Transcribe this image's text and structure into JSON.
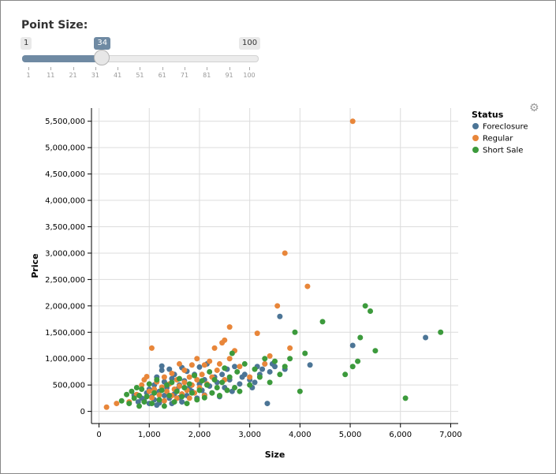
{
  "controls": {
    "point_size": {
      "label": "Point Size:",
      "min": 1,
      "max": 100,
      "value": 34,
      "min_label": "1",
      "max_label": "100",
      "value_label": "34",
      "ticks": [
        "1",
        "11",
        "21",
        "31",
        "41",
        "51",
        "61",
        "71",
        "81",
        "91",
        "100"
      ],
      "accent_color": "#6f8aa3"
    }
  },
  "gear_icon": "gear-icon",
  "chart_data": {
    "type": "scatter",
    "xlabel": "Size",
    "ylabel": "Price",
    "xlim": [
      -150,
      7150
    ],
    "ylim": [
      -230000,
      5750000
    ],
    "x_ticks": [
      0,
      1000,
      2000,
      3000,
      4000,
      5000,
      6000,
      7000
    ],
    "x_tick_labels": [
      "0",
      "1,000",
      "2,000",
      "3,000",
      "4,000",
      "5,000",
      "6,000",
      "7,000"
    ],
    "y_ticks": [
      0,
      500000,
      1000000,
      1500000,
      2000000,
      2500000,
      3000000,
      3500000,
      4000000,
      4500000,
      5000000,
      5500000
    ],
    "y_tick_labels": [
      "0",
      "500,000",
      "1,000,000",
      "1,500,000",
      "2,000,000",
      "2,500,000",
      "3,000,000",
      "3,500,000",
      "4,000,000",
      "4,500,000",
      "5,000,000",
      "5,500,000"
    ],
    "grid": true,
    "legend": {
      "title": "Status",
      "position": "top-right"
    },
    "series": [
      {
        "name": "Foreclosure",
        "color": "#4c7596",
        "points": [
          [
            700,
            300000
          ],
          [
            780,
            180000
          ],
          [
            850,
            250000
          ],
          [
            900,
            200000
          ],
          [
            950,
            350000
          ],
          [
            1000,
            150000
          ],
          [
            1000,
            420000
          ],
          [
            1050,
            280000
          ],
          [
            1100,
            220000
          ],
          [
            1100,
            500000
          ],
          [
            1150,
            120000
          ],
          [
            1150,
            650000
          ],
          [
            1200,
            380000
          ],
          [
            1200,
            160000
          ],
          [
            1250,
            780000
          ],
          [
            1250,
            860000
          ],
          [
            1300,
            300000
          ],
          [
            1300,
            560000
          ],
          [
            1350,
            450000
          ],
          [
            1400,
            250000
          ],
          [
            1400,
            800000
          ],
          [
            1450,
            150000
          ],
          [
            1450,
            620000
          ],
          [
            1500,
            330000
          ],
          [
            1500,
            700000
          ],
          [
            1550,
            420000
          ],
          [
            1600,
            500000
          ],
          [
            1600,
            260000
          ],
          [
            1650,
            830000
          ],
          [
            1650,
            180000
          ],
          [
            1700,
            580000
          ],
          [
            1750,
            300000
          ],
          [
            1750,
            760000
          ],
          [
            1800,
            450000
          ],
          [
            1850,
            380000
          ],
          [
            1900,
            700000
          ],
          [
            1950,
            250000
          ],
          [
            2000,
            520000
          ],
          [
            2000,
            840000
          ],
          [
            2050,
            400000
          ],
          [
            2100,
            600000
          ],
          [
            2100,
            310000
          ],
          [
            2150,
            900000
          ],
          [
            2200,
            480000
          ],
          [
            2250,
            350000
          ],
          [
            2300,
            650000
          ],
          [
            2350,
            550000
          ],
          [
            2400,
            280000
          ],
          [
            2450,
            700000
          ],
          [
            2500,
            450000
          ],
          [
            2550,
            800000
          ],
          [
            2600,
            600000
          ],
          [
            2650,
            380000
          ],
          [
            2700,
            850000
          ],
          [
            2800,
            520000
          ],
          [
            2850,
            650000
          ],
          [
            2900,
            700000
          ],
          [
            3000,
            600000
          ],
          [
            3050,
            450000
          ],
          [
            3100,
            550000
          ],
          [
            3150,
            850000
          ],
          [
            3200,
            700000
          ],
          [
            3250,
            800000
          ],
          [
            3300,
            900000
          ],
          [
            3350,
            150000
          ],
          [
            3400,
            750000
          ],
          [
            3450,
            900000
          ],
          [
            3500,
            850000
          ],
          [
            3600,
            1800000
          ],
          [
            3700,
            800000
          ],
          [
            4200,
            880000
          ],
          [
            5050,
            1250000
          ],
          [
            6500,
            1400000
          ]
        ]
      },
      {
        "name": "Regular",
        "color": "#e8863a",
        "points": [
          [
            150,
            80000
          ],
          [
            350,
            150000
          ],
          [
            600,
            180000
          ],
          [
            750,
            320000
          ],
          [
            850,
            500000
          ],
          [
            900,
            600000
          ],
          [
            950,
            660000
          ],
          [
            1000,
            380000
          ],
          [
            1050,
            260000
          ],
          [
            1050,
            1200000
          ],
          [
            1100,
            420000
          ],
          [
            1150,
            560000
          ],
          [
            1200,
            310000
          ],
          [
            1250,
            460000
          ],
          [
            1300,
            200000
          ],
          [
            1300,
            650000
          ],
          [
            1350,
            380000
          ],
          [
            1400,
            520000
          ],
          [
            1450,
            300000
          ],
          [
            1450,
            720000
          ],
          [
            1500,
            420000
          ],
          [
            1550,
            250000
          ],
          [
            1550,
            600000
          ],
          [
            1600,
            480000
          ],
          [
            1600,
            900000
          ],
          [
            1650,
            330000
          ],
          [
            1700,
            550000
          ],
          [
            1700,
            780000
          ],
          [
            1750,
            400000
          ],
          [
            1800,
            650000
          ],
          [
            1800,
            250000
          ],
          [
            1850,
            500000
          ],
          [
            1850,
            880000
          ],
          [
            1900,
            350000
          ],
          [
            1950,
            600000
          ],
          [
            1950,
            1000000
          ],
          [
            2000,
            450000
          ],
          [
            2050,
            700000
          ],
          [
            2100,
            300000
          ],
          [
            2100,
            880000
          ],
          [
            2150,
            520000
          ],
          [
            2200,
            950000
          ],
          [
            2250,
            650000
          ],
          [
            2300,
            1200000
          ],
          [
            2350,
            780000
          ],
          [
            2400,
            900000
          ],
          [
            2450,
            1300000
          ],
          [
            2500,
            600000
          ],
          [
            2500,
            1350000
          ],
          [
            2600,
            1600000
          ],
          [
            2600,
            1000000
          ],
          [
            2700,
            1150000
          ],
          [
            2800,
            850000
          ],
          [
            3000,
            650000
          ],
          [
            3150,
            1480000
          ],
          [
            3300,
            900000
          ],
          [
            3400,
            1050000
          ],
          [
            3550,
            2000000
          ],
          [
            3700,
            3000000
          ],
          [
            3800,
            1200000
          ],
          [
            4150,
            2370000
          ],
          [
            5050,
            5500000
          ]
        ]
      },
      {
        "name": "Short Sale",
        "color": "#3c9a3c",
        "points": [
          [
            450,
            200000
          ],
          [
            550,
            320000
          ],
          [
            600,
            150000
          ],
          [
            650,
            380000
          ],
          [
            700,
            250000
          ],
          [
            750,
            450000
          ],
          [
            800,
            100000
          ],
          [
            800,
            300000
          ],
          [
            850,
            420000
          ],
          [
            900,
            180000
          ],
          [
            950,
            280000
          ],
          [
            1000,
            520000
          ],
          [
            1050,
            150000
          ],
          [
            1100,
            350000
          ],
          [
            1150,
            600000
          ],
          [
            1200,
            220000
          ],
          [
            1250,
            400000
          ],
          [
            1300,
            100000
          ],
          [
            1350,
            500000
          ],
          [
            1400,
            300000
          ],
          [
            1450,
            550000
          ],
          [
            1500,
            180000
          ],
          [
            1550,
            380000
          ],
          [
            1600,
            620000
          ],
          [
            1650,
            280000
          ],
          [
            1700,
            450000
          ],
          [
            1750,
            150000
          ],
          [
            1800,
            520000
          ],
          [
            1850,
            350000
          ],
          [
            1900,
            680000
          ],
          [
            1950,
            220000
          ],
          [
            2000,
            400000
          ],
          [
            2050,
            580000
          ],
          [
            2100,
            260000
          ],
          [
            2150,
            500000
          ],
          [
            2200,
            750000
          ],
          [
            2250,
            350000
          ],
          [
            2300,
            600000
          ],
          [
            2350,
            450000
          ],
          [
            2400,
            300000
          ],
          [
            2450,
            550000
          ],
          [
            2500,
            820000
          ],
          [
            2550,
            400000
          ],
          [
            2600,
            650000
          ],
          [
            2650,
            1100000
          ],
          [
            2700,
            450000
          ],
          [
            2750,
            750000
          ],
          [
            2800,
            380000
          ],
          [
            2900,
            900000
          ],
          [
            3000,
            500000
          ],
          [
            3100,
            800000
          ],
          [
            3200,
            650000
          ],
          [
            3300,
            1000000
          ],
          [
            3400,
            550000
          ],
          [
            3500,
            950000
          ],
          [
            3600,
            700000
          ],
          [
            3700,
            850000
          ],
          [
            3800,
            1000000
          ],
          [
            3900,
            1500000
          ],
          [
            4000,
            380000
          ],
          [
            4100,
            1100000
          ],
          [
            4450,
            1700000
          ],
          [
            4900,
            700000
          ],
          [
            5050,
            850000
          ],
          [
            5150,
            950000
          ],
          [
            5200,
            1400000
          ],
          [
            5300,
            2000000
          ],
          [
            5400,
            1900000
          ],
          [
            5500,
            1150000
          ],
          [
            6100,
            250000
          ],
          [
            6800,
            1500000
          ]
        ]
      }
    ]
  }
}
